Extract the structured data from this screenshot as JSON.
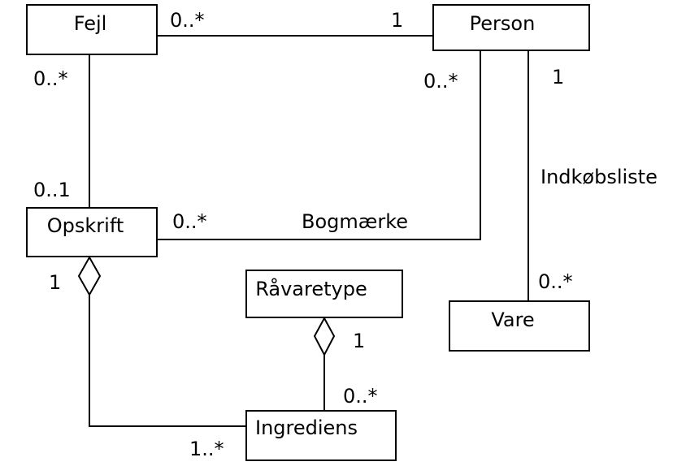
{
  "classes": {
    "fejl": "Fejl",
    "person": "Person",
    "opskrift": "Opskrift",
    "raavaretype": "Råvaretype",
    "vare": "Vare",
    "ingrediens": "Ingrediens"
  },
  "associations": {
    "fejl_person": {
      "fejl_end": "0..*",
      "person_end": "1"
    },
    "fejl_opskrift": {
      "fejl_end": "0..*",
      "opskrift_end": "0..1"
    },
    "bogmaerke": {
      "name": "Bogmærke",
      "opskrift_end": "0..*",
      "person_end": "0..*"
    },
    "indkoebsliste": {
      "name": "Indkøbsliste",
      "person_end": "1",
      "vare_end": "0..*"
    },
    "opskrift_ingrediens": {
      "opskrift_end": "1",
      "ingrediens_end": "1..*"
    },
    "raavaretype_ingrediens": {
      "raavaretype_end": "1",
      "ingrediens_end": "0..*"
    }
  }
}
